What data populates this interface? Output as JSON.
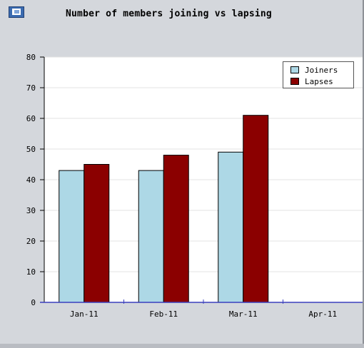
{
  "colors": {
    "frame": "#d4d7dc",
    "plot_bg": "#ffffff",
    "axis": "#3a3fbd",
    "grid": "#e3e3e3"
  },
  "icons": {
    "corner": "chart-window-icon"
  },
  "chart_data": {
    "type": "bar",
    "title": "Number of members joining vs lapsing",
    "categories": [
      "Jan-11",
      "Feb-11",
      "Mar-11",
      "Apr-11"
    ],
    "series": [
      {
        "name": "Joiners",
        "color": "#add8e6",
        "values": [
          43,
          43,
          49,
          0
        ]
      },
      {
        "name": "Lapses",
        "color": "#8b0000",
        "values": [
          45,
          48,
          61,
          0
        ]
      }
    ],
    "ylim": [
      0,
      80
    ],
    "yticks": [
      "0",
      "10",
      "20",
      "30",
      "40",
      "50",
      "60",
      "70",
      "80"
    ],
    "grid": true,
    "legend_position": "top-right",
    "xlabel": "",
    "ylabel": ""
  }
}
